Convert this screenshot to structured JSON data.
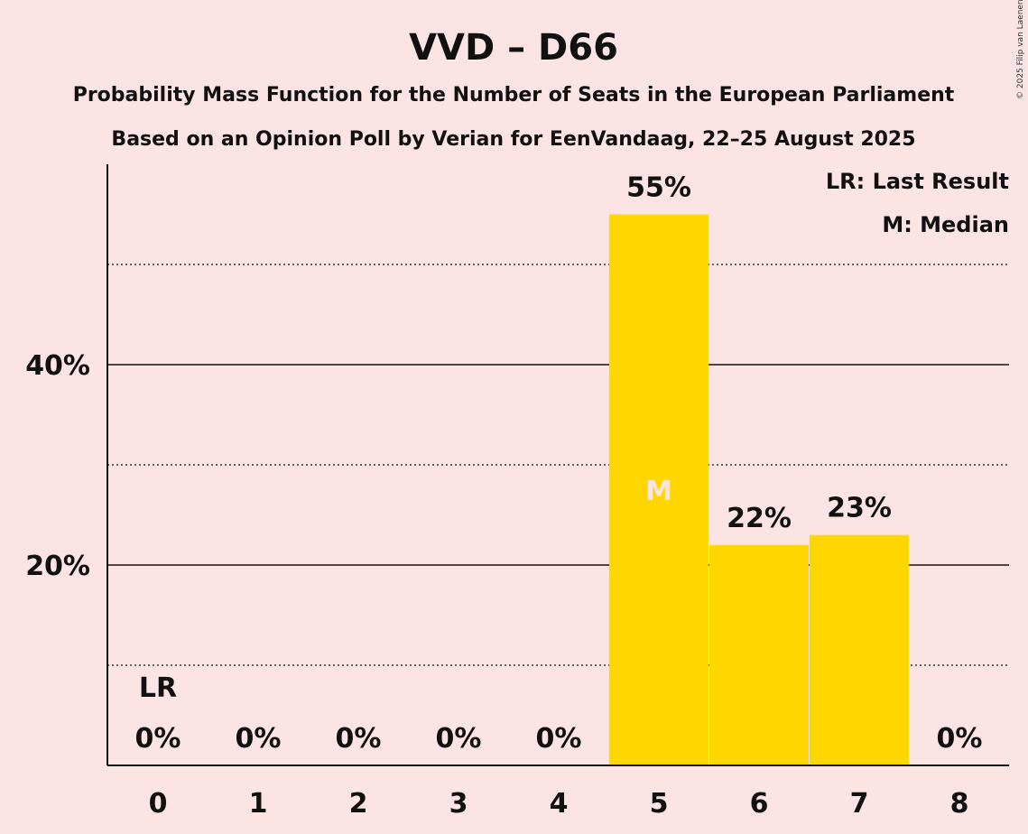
{
  "chart_data": {
    "type": "bar",
    "title": "VVD – D66",
    "subtitle1": "Probability Mass Function for the Number of Seats in the European Parliament",
    "subtitle2": "Based on an Opinion Poll by Verian for EenVandaag, 22–25 August 2025",
    "categories": [
      "0",
      "1",
      "2",
      "3",
      "4",
      "5",
      "6",
      "7",
      "8"
    ],
    "values": [
      0,
      0,
      0,
      0,
      0,
      55,
      22,
      23,
      0
    ],
    "value_labels": [
      "0%",
      "0%",
      "0%",
      "0%",
      "0%",
      "55%",
      "22%",
      "23%",
      "0%"
    ],
    "y_ticks": [
      {
        "value": 20,
        "label": "20%"
      },
      {
        "value": 40,
        "label": "40%"
      }
    ],
    "minor_gridlines": [
      10,
      30,
      50
    ],
    "ylim": [
      0,
      60
    ],
    "bar_color": "#FFD700",
    "last_result_index": 0,
    "last_result_label": "LR",
    "median_index": 5,
    "median_label": "M",
    "legend": [
      "LR: Last Result",
      "M: Median"
    ],
    "copyright": "© 2025 Filip van Laenen"
  }
}
